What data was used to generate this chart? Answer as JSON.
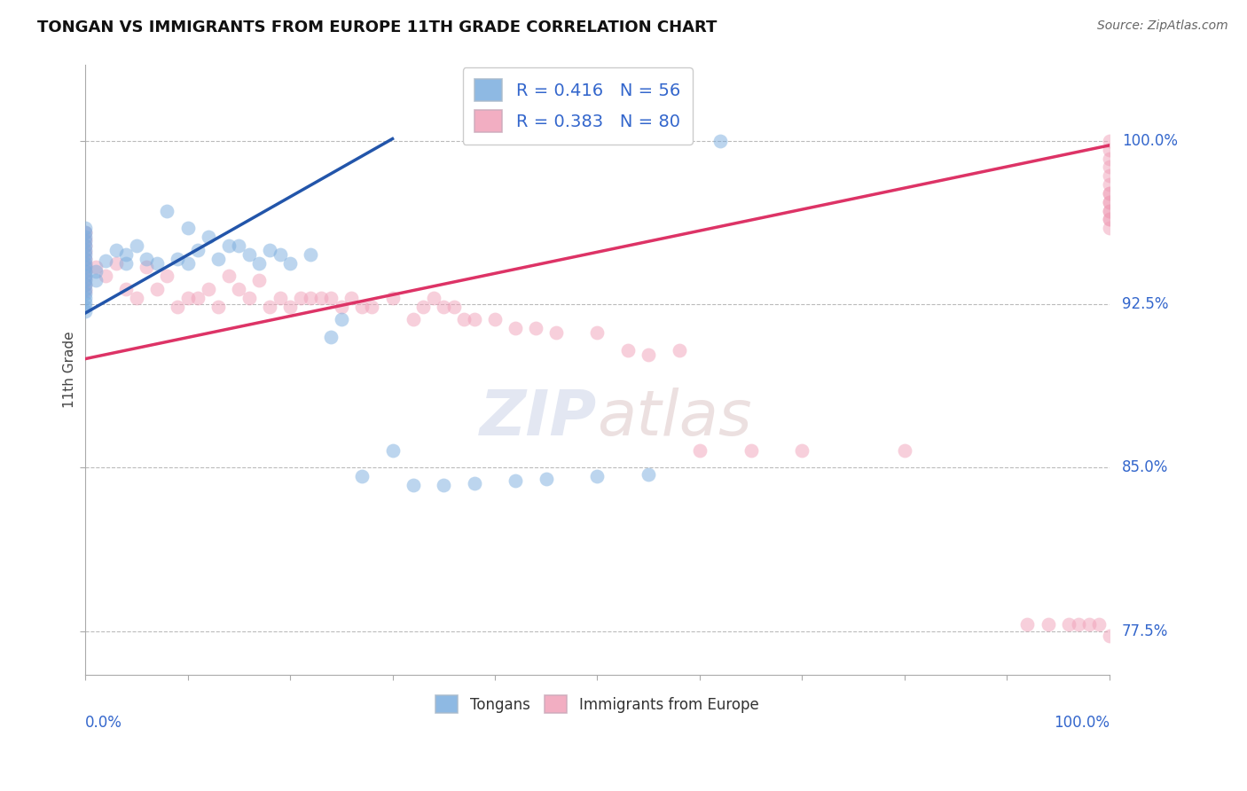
{
  "title": "TONGAN VS IMMIGRANTS FROM EUROPE 11TH GRADE CORRELATION CHART",
  "source": "Source: ZipAtlas.com",
  "ylabel": "11th Grade",
  "blue_color": "#7aadde",
  "pink_color": "#f0a0b8",
  "blue_line_color": "#2255aa",
  "pink_line_color": "#dd3366",
  "marker_size": 130,
  "marker_alpha": 0.5,
  "legend_blue_label": "R = 0.416   N = 56",
  "legend_pink_label": "R = 0.383   N = 80",
  "blue_x": [
    0.0,
    0.0,
    0.0,
    0.0,
    0.0,
    0.0,
    0.0,
    0.0,
    0.0,
    0.0,
    0.0,
    0.0,
    0.0,
    0.0,
    0.0,
    0.0,
    0.0,
    0.0,
    0.0,
    0.0,
    0.01,
    0.01,
    0.02,
    0.03,
    0.04,
    0.04,
    0.05,
    0.06,
    0.07,
    0.08,
    0.09,
    0.1,
    0.1,
    0.11,
    0.12,
    0.13,
    0.14,
    0.15,
    0.16,
    0.17,
    0.18,
    0.19,
    0.2,
    0.22,
    0.24,
    0.25,
    0.27,
    0.3,
    0.32,
    0.35,
    0.38,
    0.42,
    0.45,
    0.5,
    0.55,
    0.62
  ],
  "blue_y": [
    0.96,
    0.958,
    0.956,
    0.954,
    0.952,
    0.95,
    0.948,
    0.946,
    0.944,
    0.942,
    0.94,
    0.938,
    0.936,
    0.934,
    0.932,
    0.93,
    0.928,
    0.926,
    0.924,
    0.922,
    0.94,
    0.936,
    0.945,
    0.95,
    0.948,
    0.944,
    0.952,
    0.946,
    0.944,
    0.968,
    0.946,
    0.96,
    0.944,
    0.95,
    0.956,
    0.946,
    0.952,
    0.952,
    0.948,
    0.944,
    0.95,
    0.948,
    0.944,
    0.948,
    0.91,
    0.918,
    0.846,
    0.858,
    0.842,
    0.842,
    0.843,
    0.844,
    0.845,
    0.846,
    0.847,
    1.0
  ],
  "pink_x": [
    0.0,
    0.0,
    0.0,
    0.0,
    0.0,
    0.0,
    0.0,
    0.0,
    0.0,
    0.0,
    0.01,
    0.02,
    0.03,
    0.04,
    0.05,
    0.06,
    0.07,
    0.08,
    0.09,
    0.1,
    0.11,
    0.12,
    0.13,
    0.14,
    0.15,
    0.16,
    0.17,
    0.18,
    0.19,
    0.2,
    0.21,
    0.22,
    0.23,
    0.24,
    0.25,
    0.26,
    0.27,
    0.28,
    0.3,
    0.32,
    0.33,
    0.34,
    0.35,
    0.36,
    0.37,
    0.38,
    0.4,
    0.42,
    0.44,
    0.46,
    0.5,
    0.53,
    0.55,
    0.58,
    0.6,
    0.65,
    0.7,
    0.8,
    0.92,
    0.94,
    0.96,
    0.97,
    0.98,
    0.99,
    1.0,
    1.0,
    1.0,
    1.0,
    1.0,
    1.0,
    1.0,
    1.0,
    1.0,
    1.0,
    1.0,
    1.0,
    1.0,
    1.0,
    1.0,
    1.0
  ],
  "pink_y": [
    0.958,
    0.955,
    0.952,
    0.949,
    0.946,
    0.943,
    0.94,
    0.937,
    0.934,
    0.931,
    0.942,
    0.938,
    0.944,
    0.932,
    0.928,
    0.942,
    0.932,
    0.938,
    0.924,
    0.928,
    0.928,
    0.932,
    0.924,
    0.938,
    0.932,
    0.928,
    0.936,
    0.924,
    0.928,
    0.924,
    0.928,
    0.928,
    0.928,
    0.928,
    0.924,
    0.928,
    0.924,
    0.924,
    0.928,
    0.918,
    0.924,
    0.928,
    0.924,
    0.924,
    0.918,
    0.918,
    0.918,
    0.914,
    0.914,
    0.912,
    0.912,
    0.904,
    0.902,
    0.904,
    0.858,
    0.858,
    0.858,
    0.858,
    0.778,
    0.778,
    0.778,
    0.778,
    0.778,
    0.778,
    0.976,
    0.972,
    0.968,
    0.964,
    0.96,
    0.964,
    0.968,
    0.972,
    0.976,
    0.98,
    0.984,
    0.988,
    0.992,
    0.996,
    1.0,
    0.773
  ]
}
